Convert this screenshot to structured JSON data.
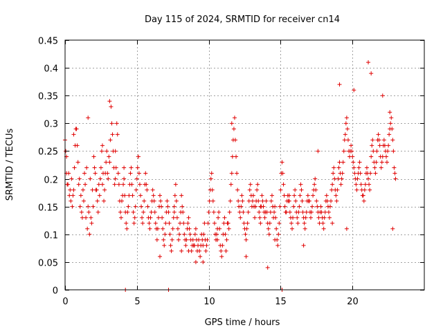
{
  "chart_data": {
    "type": "scatter",
    "title": "Day 115 of 2024, SRMTID for receiver cn14",
    "xlabel": "GPS time / hours",
    "ylabel": "SRMTID / TECUs",
    "xlim": [
      0,
      25
    ],
    "ylim": [
      0,
      0.45
    ],
    "xticks": [
      0,
      5,
      10,
      15,
      20
    ],
    "xtick_labels": [
      "0",
      "5",
      "10",
      "15",
      "20"
    ],
    "yticks": [
      0,
      0.05,
      0.1,
      0.15,
      0.2,
      0.25,
      0.3,
      0.35,
      0.4,
      0.45
    ],
    "ytick_labels": [
      "0",
      "0.05",
      "0.1",
      "0.15",
      "0.2",
      "0.25",
      "0.3",
      "0.35",
      "0.4",
      "0.45"
    ],
    "grid": true,
    "marker": "plus",
    "series": [
      {
        "name": "SRMTID",
        "color": "#e00000",
        "x": [
          0.0,
          0.1,
          0.2,
          0.3,
          0.4,
          0.5,
          0.6,
          0.7,
          0.8,
          0.9,
          1.0,
          1.1,
          1.2,
          1.3,
          1.4,
          1.5,
          1.6,
          1.7,
          1.8,
          1.9,
          2.0,
          2.1,
          2.2,
          2.3,
          2.4,
          2.5,
          2.6,
          2.7,
          2.8,
          2.9,
          3.0,
          3.1,
          3.2,
          3.3,
          3.4,
          3.5,
          3.6,
          3.7,
          3.8,
          3.9,
          4.0,
          4.1,
          4.2,
          4.3,
          4.4,
          4.5,
          4.6,
          4.7,
          4.8,
          4.9,
          5.0,
          5.1,
          5.2,
          5.3,
          5.4,
          5.5,
          5.6,
          5.7,
          5.8,
          5.9,
          6.0,
          6.1,
          6.2,
          6.3,
          6.4,
          6.5,
          6.6,
          6.7,
          6.8,
          6.9,
          7.0,
          7.1,
          7.2,
          7.3,
          7.4,
          7.5,
          7.6,
          7.7,
          7.8,
          7.9,
          8.0,
          8.1,
          8.2,
          8.3,
          8.4,
          8.5,
          8.6,
          8.7,
          8.8,
          8.9,
          9.0,
          9.1,
          9.2,
          9.3,
          9.4,
          9.5,
          9.6,
          9.7,
          9.8,
          9.9,
          10.0,
          10.1,
          10.2,
          10.3,
          10.4,
          10.5,
          10.6,
          10.7,
          10.8,
          10.9,
          11.0,
          11.1,
          11.2,
          11.3,
          11.4,
          11.5,
          11.6,
          11.7,
          11.8,
          11.9,
          12.0,
          12.1,
          12.2,
          12.3,
          12.4,
          12.5,
          12.6,
          12.7,
          12.8,
          12.9,
          13.0,
          13.1,
          13.2,
          13.3,
          13.4,
          13.5,
          13.6,
          13.7,
          13.8,
          13.9,
          14.0,
          14.1,
          14.2,
          14.3,
          14.4,
          14.5,
          14.6,
          14.7,
          14.8,
          14.9,
          15.0,
          15.1,
          15.2,
          15.3,
          15.4,
          15.5,
          15.6,
          15.7,
          15.8,
          15.9,
          16.0,
          16.1,
          16.2,
          16.3,
          16.4,
          16.5,
          16.6,
          16.7,
          16.8,
          16.9,
          17.0,
          17.1,
          17.2,
          17.3,
          17.4,
          17.5,
          17.6,
          17.7,
          17.8,
          17.9,
          18.0,
          18.1,
          18.2,
          18.3,
          18.4,
          18.5,
          18.6,
          18.7,
          18.8,
          18.9,
          19.0,
          19.1,
          19.2,
          19.3,
          19.4,
          19.5,
          19.6,
          19.7,
          19.8,
          19.9,
          20.0,
          20.1,
          20.2,
          20.3,
          20.4,
          20.5,
          20.6,
          20.7,
          20.8,
          20.9,
          21.0,
          21.1,
          21.2,
          21.3,
          21.4,
          21.5,
          21.6,
          21.7,
          21.8,
          21.9,
          22.0,
          22.1,
          22.2,
          22.3,
          22.4,
          22.5,
          22.6,
          22.7,
          22.8,
          22.9,
          23.0,
          0.05,
          0.15,
          0.25,
          0.35,
          0.45,
          0.55,
          0.65,
          0.75,
          0.85,
          0.95,
          1.05,
          1.15,
          1.25,
          1.35,
          1.45,
          1.55,
          1.65,
          1.75,
          1.85,
          1.95,
          2.05,
          2.15,
          2.25,
          2.35,
          2.45,
          2.55,
          2.65,
          2.75,
          2.85,
          2.95,
          3.05,
          3.15,
          3.25,
          3.35,
          3.45,
          3.55,
          3.65,
          3.75,
          3.85,
          3.95,
          4.05,
          4.15,
          4.25,
          4.35,
          4.45,
          4.55,
          4.65,
          4.75,
          4.85,
          4.95,
          5.05,
          5.15,
          5.25,
          5.35,
          5.45,
          5.55,
          5.65,
          5.75,
          5.85,
          5.95,
          6.05,
          6.15,
          6.25,
          6.35,
          6.45,
          6.55,
          6.65,
          6.75,
          6.85,
          6.95,
          7.05,
          7.15,
          7.25,
          7.35,
          7.45,
          7.55,
          7.65,
          7.75,
          7.85,
          7.95,
          8.05,
          8.15,
          8.25,
          8.35,
          8.45,
          8.55,
          8.65,
          8.75,
          8.85,
          8.95,
          9.05,
          9.15,
          9.25,
          9.35,
          9.45,
          9.55,
          9.65,
          9.75,
          9.85,
          9.95,
          10.05,
          10.15,
          10.25,
          10.35,
          10.45,
          10.55,
          10.65,
          10.75,
          10.85,
          10.95,
          11.05,
          11.15,
          11.25,
          11.35,
          11.45,
          11.55,
          11.65,
          11.75,
          11.85,
          11.95,
          12.05,
          12.15,
          12.25,
          12.35,
          12.45,
          12.55,
          12.65,
          12.75,
          12.85,
          12.95,
          13.05,
          13.15,
          13.25,
          13.35,
          13.45,
          13.55,
          13.65,
          13.75,
          13.85,
          13.95,
          14.05,
          14.15,
          14.25,
          14.35,
          14.45,
          14.55,
          14.65,
          14.75,
          14.85,
          14.95,
          15.05,
          15.15,
          15.25,
          15.35,
          15.45,
          15.55,
          15.65,
          15.75,
          15.85,
          15.95,
          16.05,
          16.15,
          16.25,
          16.35,
          16.45,
          16.55,
          16.65,
          16.75,
          16.85,
          16.95,
          17.05,
          17.15,
          17.25,
          17.35,
          17.45,
          17.55,
          17.65,
          17.75,
          17.85,
          17.95,
          18.05,
          18.15,
          18.25,
          18.35,
          18.45,
          18.55,
          18.65,
          18.75,
          18.85,
          18.95,
          19.05,
          19.15,
          19.25,
          19.35,
          19.45,
          19.55,
          19.65,
          19.75,
          19.85,
          19.95,
          20.05,
          20.15,
          20.25,
          20.35,
          20.45,
          20.55,
          20.65,
          20.75,
          20.85,
          20.95,
          21.05,
          21.15,
          21.25,
          21.35,
          21.45,
          21.55,
          21.65,
          21.75,
          21.85,
          21.95,
          22.05,
          22.15,
          22.25,
          22.35,
          22.45,
          22.55,
          22.65,
          22.75,
          22.85,
          22.95,
          0.1,
          0.6,
          1.6,
          2.6,
          3.1,
          3.5,
          4.1,
          5.1,
          6.6,
          7.6,
          8.1,
          8.6,
          9.1,
          9.6,
          10.6,
          11.6,
          12.6,
          13.6,
          14.1,
          14.6,
          15.6,
          16.6,
          17.6,
          18.6,
          19.1,
          19.6,
          20.1,
          21.1,
          21.3,
          22.1,
          22.6,
          22.8,
          4.2,
          7.2,
          15.1
        ],
        "y": [
          0.27,
          0.21,
          0.19,
          0.17,
          0.16,
          0.15,
          0.18,
          0.26,
          0.29,
          0.23,
          0.2,
          0.17,
          0.13,
          0.16,
          0.19,
          0.22,
          0.15,
          0.1,
          0.13,
          0.18,
          0.24,
          0.21,
          0.18,
          0.14,
          0.17,
          0.22,
          0.19,
          0.16,
          0.21,
          0.25,
          0.2,
          0.23,
          0.33,
          0.28,
          0.22,
          0.25,
          0.3,
          0.21,
          0.16,
          0.13,
          0.17,
          0.2,
          0.14,
          0.11,
          0.15,
          0.19,
          0.22,
          0.17,
          0.12,
          0.15,
          0.2,
          0.24,
          0.19,
          0.15,
          0.12,
          0.16,
          0.21,
          0.18,
          0.13,
          0.11,
          0.14,
          0.18,
          0.16,
          0.12,
          0.09,
          0.13,
          0.17,
          0.15,
          0.11,
          0.08,
          0.12,
          0.16,
          0.14,
          0.1,
          0.07,
          0.11,
          0.15,
          0.19,
          0.13,
          0.09,
          0.12,
          0.17,
          0.14,
          0.1,
          0.08,
          0.11,
          0.13,
          0.1,
          0.07,
          0.09,
          0.08,
          0.11,
          0.07,
          0.09,
          0.06,
          0.1,
          0.08,
          0.12,
          0.07,
          0.09,
          0.14,
          0.18,
          0.21,
          0.16,
          0.12,
          0.09,
          0.11,
          0.14,
          0.08,
          0.06,
          0.1,
          0.13,
          0.07,
          0.12,
          0.11,
          0.16,
          0.21,
          0.27,
          0.31,
          0.24,
          0.18,
          0.15,
          0.13,
          0.17,
          0.14,
          0.11,
          0.09,
          0.12,
          0.16,
          0.19,
          0.15,
          0.17,
          0.13,
          0.16,
          0.19,
          0.14,
          0.12,
          0.17,
          0.15,
          0.13,
          0.16,
          0.12,
          0.1,
          0.14,
          0.17,
          0.13,
          0.15,
          0.11,
          0.08,
          0.12,
          0.18,
          0.23,
          0.19,
          0.15,
          0.14,
          0.17,
          0.16,
          0.13,
          0.11,
          0.15,
          0.18,
          0.14,
          0.12,
          0.15,
          0.19,
          0.16,
          0.13,
          0.11,
          0.14,
          0.17,
          0.16,
          0.13,
          0.15,
          0.18,
          0.2,
          0.16,
          0.14,
          0.12,
          0.15,
          0.13,
          0.11,
          0.14,
          0.17,
          0.15,
          0.13,
          0.16,
          0.19,
          0.22,
          0.18,
          0.16,
          0.2,
          0.23,
          0.19,
          0.21,
          0.25,
          0.28,
          0.31,
          0.27,
          0.24,
          0.26,
          0.24,
          0.22,
          0.2,
          0.18,
          0.21,
          0.23,
          0.19,
          0.17,
          0.16,
          0.19,
          0.22,
          0.2,
          0.18,
          0.24,
          0.27,
          0.23,
          0.21,
          0.25,
          0.28,
          0.26,
          0.22,
          0.24,
          0.27,
          0.25,
          0.23,
          0.26,
          0.29,
          0.31,
          0.27,
          0.22,
          0.2,
          0.25,
          0.19,
          0.21,
          0.18,
          0.2,
          0.17,
          0.22,
          0.29,
          0.26,
          0.19,
          0.15,
          0.14,
          0.18,
          0.21,
          0.13,
          0.11,
          0.14,
          0.2,
          0.12,
          0.15,
          0.22,
          0.18,
          0.16,
          0.19,
          0.2,
          0.25,
          0.21,
          0.18,
          0.23,
          0.21,
          0.24,
          0.27,
          0.3,
          0.25,
          0.19,
          0.22,
          0.28,
          0.19,
          0.14,
          0.16,
          0.19,
          0.17,
          0.12,
          0.14,
          0.17,
          0.21,
          0.19,
          0.14,
          0.13,
          0.18,
          0.22,
          0.21,
          0.17,
          0.13,
          0.14,
          0.19,
          0.19,
          0.15,
          0.12,
          0.13,
          0.16,
          0.17,
          0.14,
          0.11,
          0.11,
          0.15,
          0.16,
          0.13,
          0.09,
          0.1,
          0.14,
          0.15,
          0.12,
          0.08,
          0.09,
          0.13,
          0.17,
          0.16,
          0.11,
          0.1,
          0.14,
          0.15,
          0.12,
          0.09,
          0.09,
          0.12,
          0.11,
          0.09,
          0.08,
          0.08,
          0.1,
          0.09,
          0.08,
          0.07,
          0.08,
          0.09,
          0.1,
          0.09,
          0.08,
          0.12,
          0.16,
          0.2,
          0.18,
          0.14,
          0.1,
          0.1,
          0.13,
          0.11,
          0.07,
          0.08,
          0.12,
          0.1,
          0.09,
          0.12,
          0.14,
          0.19,
          0.24,
          0.29,
          0.27,
          0.21,
          0.16,
          0.14,
          0.15,
          0.16,
          0.12,
          0.1,
          0.11,
          0.14,
          0.18,
          0.17,
          0.16,
          0.15,
          0.15,
          0.18,
          0.16,
          0.13,
          0.15,
          0.16,
          0.14,
          0.14,
          0.14,
          0.11,
          0.12,
          0.16,
          0.15,
          0.14,
          0.13,
          0.09,
          0.1,
          0.15,
          0.21,
          0.21,
          0.17,
          0.14,
          0.16,
          0.16,
          0.14,
          0.12,
          0.13,
          0.17,
          0.16,
          0.13,
          0.14,
          0.17,
          0.18,
          0.14,
          0.12,
          0.13,
          0.16,
          0.16,
          0.14,
          0.14,
          0.17,
          0.19,
          0.18,
          0.15,
          0.13,
          0.14,
          0.14,
          0.12,
          0.13,
          0.16,
          0.16,
          0.14,
          0.15,
          0.18,
          0.21,
          0.2,
          0.17,
          0.18,
          0.22,
          0.21,
          0.2,
          0.23,
          0.27,
          0.3,
          0.29,
          0.25,
          0.25,
          0.25,
          0.23,
          0.21,
          0.19,
          0.2,
          0.22,
          0.21,
          0.18,
          0.17,
          0.18,
          0.21,
          0.21,
          0.19,
          0.21,
          0.26,
          0.25,
          0.22,
          0.23,
          0.27,
          0.27,
          0.24,
          0.23,
          0.26,
          0.26,
          0.24,
          0.25,
          0.28,
          0.3,
          0.29,
          0.25,
          0.21,
          0.24,
          0.28,
          0.31,
          0.26,
          0.34,
          0.2,
          0.22,
          0.24,
          0.06,
          0.14,
          0.07,
          0.07,
          0.05,
          0.05,
          0.09,
          0.3,
          0.06,
          0.15,
          0.04,
          0.09,
          0.17,
          0.08,
          0.25,
          0.12,
          0.37,
          0.11,
          0.36,
          0.41,
          0.39,
          0.35,
          0.32,
          0.11,
          0.0,
          0.0,
          0.0
        ]
      }
    ]
  }
}
